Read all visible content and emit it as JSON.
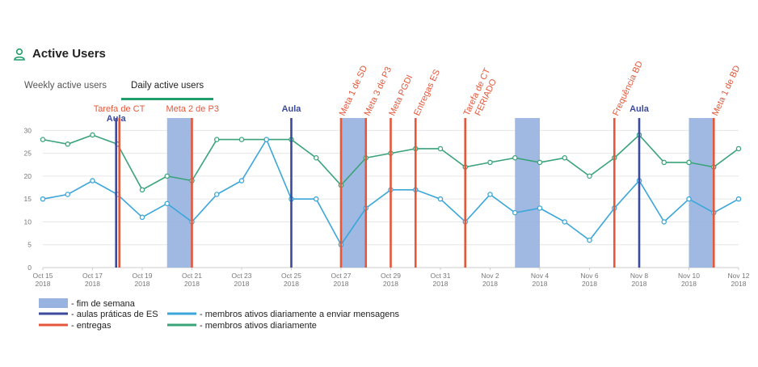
{
  "header": {
    "title": "Active Users",
    "icon": "user-icon"
  },
  "tabs": [
    {
      "label": "Weekly active users",
      "active": false
    },
    {
      "label": "Daily active users",
      "active": true
    }
  ],
  "chart_data": {
    "type": "line",
    "x": [
      "Oct 15",
      "Oct 16",
      "Oct 17",
      "Oct 18",
      "Oct 19",
      "Oct 20",
      "Oct 21",
      "Oct 22",
      "Oct 23",
      "Oct 24",
      "Oct 25",
      "Oct 26",
      "Oct 27",
      "Oct 28",
      "Oct 29",
      "Oct 30",
      "Oct 31",
      "Nov 1",
      "Nov 2",
      "Nov 3",
      "Nov 4",
      "Nov 5",
      "Nov 6",
      "Nov 7",
      "Nov 8",
      "Nov 9",
      "Nov 10",
      "Nov 11",
      "Nov 12"
    ],
    "x_ticks": [
      {
        "date": "Oct 15",
        "line1": "Oct 15",
        "line2": "2018"
      },
      {
        "date": "Oct 17",
        "line1": "Oct 17",
        "line2": "2018"
      },
      {
        "date": "Oct 19",
        "line1": "Oct 19",
        "line2": "2018"
      },
      {
        "date": "Oct 21",
        "line1": "Oct 21",
        "line2": "2018"
      },
      {
        "date": "Oct 23",
        "line1": "Oct 23",
        "line2": "2018"
      },
      {
        "date": "Oct 25",
        "line1": "Oct 25",
        "line2": "2018"
      },
      {
        "date": "Oct 27",
        "line1": "Oct 27",
        "line2": "2018"
      },
      {
        "date": "Oct 29",
        "line1": "Oct 29",
        "line2": "2018"
      },
      {
        "date": "Oct 31",
        "line1": "Oct 31",
        "line2": "2018"
      },
      {
        "date": "Nov 2",
        "line1": "Nov 2",
        "line2": "2018"
      },
      {
        "date": "Nov 4",
        "line1": "Nov 4",
        "line2": "2018"
      },
      {
        "date": "Nov 6",
        "line1": "Nov 6",
        "line2": "2018"
      },
      {
        "date": "Nov 8",
        "line1": "Nov 8",
        "line2": "2018"
      },
      {
        "date": "Nov 10",
        "line1": "Nov 10",
        "line2": "2018"
      },
      {
        "date": "Nov 12",
        "line1": "Nov 12",
        "line2": "2018"
      }
    ],
    "y_ticks": [
      0,
      5,
      10,
      15,
      20,
      25,
      30
    ],
    "ylim": [
      0,
      32
    ],
    "grid": true,
    "series": [
      {
        "key": "daily",
        "color": "#3aa37a",
        "values": [
          28,
          27,
          29,
          27,
          17,
          20,
          19,
          28,
          28,
          28,
          28,
          24,
          18,
          24,
          25,
          26,
          26,
          22,
          23,
          24,
          23,
          24,
          20,
          24,
          29,
          23,
          23,
          22,
          26
        ]
      },
      {
        "key": "messages",
        "color": "#3ba6d9",
        "values": [
          15,
          16,
          19,
          16,
          11,
          14,
          10,
          16,
          19,
          28,
          15,
          15,
          5,
          13,
          17,
          17,
          15,
          10,
          16,
          12,
          13,
          10,
          6,
          13,
          19,
          10,
          15,
          12,
          15
        ]
      }
    ],
    "weekends": [
      {
        "from": "Oct 20",
        "to": "Oct 21"
      },
      {
        "from": "Oct 27",
        "to": "Oct 28"
      },
      {
        "from": "Nov 3",
        "to": "Nov 4"
      },
      {
        "from": "Nov 10",
        "to": "Nov 11"
      }
    ],
    "annotations": [
      {
        "label": "Aula",
        "date": "Oct 18",
        "offset": -0.05,
        "kind": "aula",
        "rotate": false,
        "tier": "low"
      },
      {
        "label": "Tarefa de CT",
        "date": "Oct 18",
        "offset": 0.08,
        "kind": "entrega",
        "rotate": false,
        "tier": "high"
      },
      {
        "label": "Meta 2 de P3",
        "date": "Oct 21",
        "offset": 0,
        "kind": "entrega",
        "rotate": false,
        "tier": "high"
      },
      {
        "label": "Aula",
        "date": "Oct 25",
        "offset": 0,
        "kind": "aula",
        "rotate": false,
        "tier": "high"
      },
      {
        "label": "Meta 1 de SD",
        "date": "Oct 27",
        "offset": 0,
        "kind": "entrega",
        "rotate": true
      },
      {
        "label": "Meta 3 de P3",
        "date": "Oct 28",
        "offset": 0,
        "kind": "entrega",
        "rotate": true
      },
      {
        "label": "Meta PGDI",
        "date": "Oct 29",
        "offset": 0,
        "kind": "entrega",
        "rotate": true
      },
      {
        "label": "Entregas ES",
        "date": "Oct 30",
        "offset": 0,
        "kind": "entrega",
        "rotate": true
      },
      {
        "label": "Tarefa de CT",
        "date": "Nov 1",
        "offset": 0,
        "kind": "entrega",
        "rotate": true
      },
      {
        "label": "FERIADO",
        "date": "Nov 1",
        "offset": 0,
        "kind": "note",
        "rotate": true
      },
      {
        "label": "Frequência BD",
        "date": "Nov 7",
        "offset": 0,
        "kind": "entrega",
        "rotate": true
      },
      {
        "label": "Aula",
        "date": "Nov 8",
        "offset": 0,
        "kind": "aula",
        "rotate": false,
        "tier": "high"
      },
      {
        "label": "Meta 1 de BD",
        "date": "Nov 11",
        "offset": 0,
        "kind": "entrega",
        "rotate": true
      }
    ],
    "colors": {
      "aula": "#3b4a9c",
      "entrega": "#e4573a",
      "weekend": "#98b3e0",
      "grid": "#e6e6e6",
      "axis": "#cccccc"
    },
    "legend": [
      {
        "symbol": "box",
        "color": "#98b3e0",
        "label": "- fim de semana"
      },
      {
        "symbol": "line",
        "color": "#3b4a9c",
        "label": "- aulas práticas de ES"
      },
      {
        "symbol": "line",
        "color": "#e4573a",
        "label": "- entregas"
      },
      {
        "symbol": "line",
        "color": "#3ba6d9",
        "label": "- membros ativos diariamente a enviar mensagens"
      },
      {
        "symbol": "line",
        "color": "#3aa37a",
        "label": "- membros ativos diariamente"
      }
    ]
  }
}
